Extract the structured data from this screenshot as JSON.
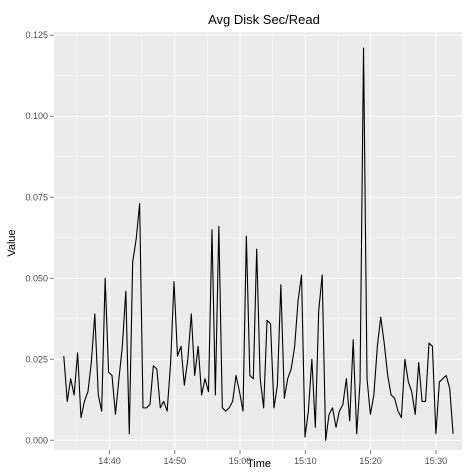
{
  "chart_data": {
    "type": "line",
    "title": "Avg Disk Sec/Read",
    "xlabel": "Time",
    "ylabel": "Value",
    "xlim": [
      "14:31:30",
      "15:34:00"
    ],
    "ylim": [
      -0.003,
      0.126
    ],
    "x_ticks": [
      "14:40",
      "14:50",
      "15:00",
      "15:10",
      "15:20",
      "15:30"
    ],
    "y_ticks": [
      "0.000",
      "0.025",
      "0.050",
      "0.075",
      "0.100",
      "0.125"
    ],
    "grid": true,
    "panel_color": "#ebebeb",
    "grid_color": "#ffffff",
    "line_color": "#000000",
    "series": [
      {
        "x": [
          "14:33:00",
          "14:33:32",
          "14:34:03",
          "14:34:35",
          "14:35:07",
          "14:35:38",
          "14:36:10",
          "14:36:42",
          "14:37:13",
          "14:37:45",
          "14:38:17",
          "14:38:48",
          "14:39:20",
          "14:39:52",
          "14:40:23",
          "14:40:55",
          "14:41:27",
          "14:41:58",
          "14:42:30",
          "14:43:02",
          "14:43:33",
          "14:44:05",
          "14:44:37",
          "14:45:08",
          "14:45:40",
          "14:46:12",
          "14:46:43",
          "14:47:15",
          "14:47:47",
          "14:48:18",
          "14:48:50",
          "14:49:22",
          "14:49:53",
          "14:50:25",
          "14:50:57",
          "14:51:28",
          "14:52:00",
          "14:52:32",
          "14:53:03",
          "14:53:35",
          "14:54:07",
          "14:54:38",
          "14:55:10",
          "14:55:42",
          "14:56:13",
          "14:56:45",
          "14:57:17",
          "14:57:48",
          "14:58:20",
          "14:58:52",
          "14:59:23",
          "14:59:55",
          "15:00:27",
          "15:00:58",
          "15:01:30",
          "15:02:02",
          "15:02:33",
          "15:03:05",
          "15:03:37",
          "15:04:08",
          "15:04:40",
          "15:05:12",
          "15:05:43",
          "15:06:15",
          "15:06:47",
          "15:07:18",
          "15:07:50",
          "15:08:22",
          "15:08:53",
          "15:09:25",
          "15:09:57",
          "15:10:28",
          "15:11:00",
          "15:11:32",
          "15:12:03",
          "15:12:35",
          "15:13:07",
          "15:13:38",
          "15:14:10",
          "15:14:42",
          "15:15:13",
          "15:15:45",
          "15:16:17",
          "15:16:48",
          "15:17:20",
          "15:17:52",
          "15:18:23",
          "15:18:55",
          "15:19:27",
          "15:19:58",
          "15:20:30",
          "15:21:02",
          "15:21:33",
          "15:22:05",
          "15:22:37",
          "15:23:08",
          "15:23:40",
          "15:24:12",
          "15:24:43",
          "15:25:15",
          "15:25:47",
          "15:26:18",
          "15:26:50",
          "15:27:22",
          "15:27:53",
          "15:28:25",
          "15:28:57",
          "15:29:28",
          "15:30:00",
          "15:30:32",
          "15:31:03",
          "15:31:35",
          "15:32:07",
          "15:32:38"
        ],
        "y": [
          0.026,
          0.012,
          0.019,
          0.014,
          0.027,
          0.007,
          0.012,
          0.015,
          0.024,
          0.039,
          0.014,
          0.009,
          0.05,
          0.021,
          0.02,
          0.008,
          0.019,
          0.029,
          0.046,
          0.002,
          0.055,
          0.062,
          0.073,
          0.01,
          0.01,
          0.011,
          0.023,
          0.022,
          0.01,
          0.012,
          0.009,
          0.024,
          0.049,
          0.026,
          0.029,
          0.017,
          0.025,
          0.039,
          0.02,
          0.029,
          0.014,
          0.019,
          0.015,
          0.065,
          0.014,
          0.066,
          0.01,
          0.009,
          0.01,
          0.012,
          0.02,
          0.015,
          0.009,
          0.063,
          0.02,
          0.019,
          0.059,
          0.019,
          0.01,
          0.037,
          0.036,
          0.01,
          0.017,
          0.048,
          0.013,
          0.019,
          0.022,
          0.029,
          0.043,
          0.051,
          0.001,
          0.009,
          0.025,
          0.004,
          0.04,
          0.051,
          0.0,
          0.008,
          0.01,
          0.004,
          0.009,
          0.011,
          0.019,
          0.006,
          0.031,
          0.002,
          0.018,
          0.121,
          0.019,
          0.008,
          0.014,
          0.029,
          0.038,
          0.03,
          0.02,
          0.014,
          0.013,
          0.009,
          0.007,
          0.025,
          0.018,
          0.015,
          0.008,
          0.024,
          0.012,
          0.012,
          0.03,
          0.029,
          0.002,
          0.018,
          0.019,
          0.02,
          0.016,
          0.002
        ]
      }
    ]
  }
}
